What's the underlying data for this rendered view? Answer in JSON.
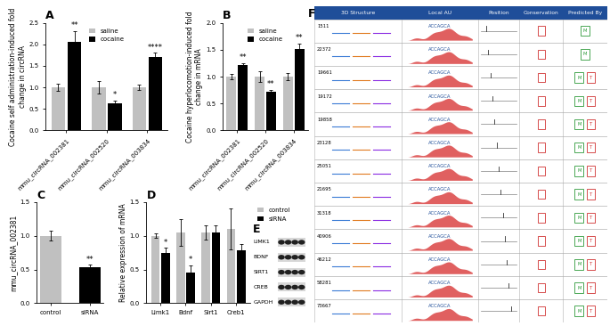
{
  "chart_data": [
    {
      "type": "bar",
      "title": "A",
      "y_label": "Cocaine self administration-induced fold change in circRNA",
      "categories": [
        "mmu_circRNA_002381",
        "mmu_circRNA_002520",
        "mmu_circRNA_003834"
      ],
      "series": [
        {
          "name": "saline",
          "color": "#c0c0c0",
          "values": [
            1.0,
            1.0,
            1.0
          ],
          "errors": [
            0.08,
            0.15,
            0.07
          ],
          "annotations": [
            null,
            null,
            null
          ]
        },
        {
          "name": "cocaine",
          "color": "#000000",
          "values": [
            2.05,
            0.63,
            1.7
          ],
          "errors": [
            0.25,
            0.06,
            0.1
          ],
          "annotations": [
            "**",
            "*",
            "****"
          ]
        }
      ],
      "ylim": [
        0,
        2.5
      ],
      "yticks": [
        {
          "value": 0,
          "label": "0.0"
        },
        0.5,
        {
          "value": 1,
          "label": "1.0"
        },
        1.5,
        {
          "value": 2,
          "label": "2.0"
        },
        2.5
      ],
      "legend": "upper center"
    },
    {
      "type": "bar",
      "title": "B",
      "y_label": "Cocaine hyperlocomotion-induced fold change in mRNA",
      "categories": [
        "mmu_circRNA_002381",
        "mmu_circRNA_002520",
        "mmu_circRNA_003834"
      ],
      "series": [
        {
          "name": "saline",
          "color": "#c0c0c0",
          "values": [
            1.0,
            1.0,
            1.0
          ],
          "errors": [
            0.05,
            0.1,
            0.06
          ],
          "annotations": [
            null,
            null,
            null
          ]
        },
        {
          "name": "cocaine",
          "color": "#000000",
          "values": [
            1.22,
            0.72,
            1.52
          ],
          "errors": [
            0.03,
            0.03,
            0.1
          ],
          "annotations": [
            "**",
            "**",
            "**"
          ]
        }
      ],
      "ylim": [
        0,
        2
      ],
      "yticks": [
        {
          "value": 0,
          "label": "0.0"
        },
        0.5,
        {
          "value": 1,
          "label": "1.0"
        },
        1.5,
        {
          "value": 2,
          "label": "2.0"
        }
      ],
      "legend": "upper center"
    },
    {
      "type": "bar",
      "title": "C",
      "y_label": "mmu_circRNA_002381",
      "categories": [
        "control",
        "siRNA"
      ],
      "values": [
        1.0,
        0.53
      ],
      "errors": [
        0.07,
        0.04
      ],
      "annotations": [
        null,
        "**"
      ],
      "colors": [
        "#c0c0c0",
        "#000000"
      ],
      "ylim": [
        0,
        1.5
      ],
      "yticks": [
        {
          "value": 0,
          "label": "0.0"
        },
        0.5,
        {
          "value": 1,
          "label": "1.0"
        },
        1.5
      ]
    },
    {
      "type": "bar",
      "title": "D",
      "y_label": "Relative expression of mRNA",
      "categories": [
        "Limk1",
        "Bdnf",
        "Sirt1",
        "Creb1"
      ],
      "series": [
        {
          "name": "control",
          "color": "#c0c0c0",
          "values": [
            1.0,
            1.05,
            1.05,
            1.1
          ],
          "errors": [
            0.03,
            0.2,
            0.1,
            0.3
          ],
          "annotations": [
            null,
            null,
            null,
            null
          ]
        },
        {
          "name": "siRNA",
          "color": "#000000",
          "values": [
            0.74,
            0.46,
            1.05,
            0.78
          ],
          "errors": [
            0.08,
            0.1,
            0.1,
            0.1
          ],
          "annotations": [
            "*",
            "*",
            null,
            null
          ]
        }
      ],
      "ylim": [
        0,
        1.5
      ],
      "yticks": [
        {
          "value": 0,
          "label": "0.0"
        },
        0.5,
        {
          "value": 1,
          "label": "1.0"
        },
        1.5
      ],
      "legend": "outside right"
    }
  ],
  "blot": {
    "title": "E",
    "labels": [
      "LIMK1",
      "BDNF",
      "SIRT1",
      "CREB",
      "GAPDH"
    ]
  },
  "table": {
    "title": "F",
    "columns": [
      "3D Structure",
      "Local AU",
      "Position",
      "Conservation",
      "Predicted By"
    ],
    "rows": [
      {
        "position": 1511,
        "seed": "ACCAGCA",
        "predicted_by": [
          "M"
        ]
      },
      {
        "position": 22372,
        "seed": "ACCAGCA",
        "predicted_by": [
          "M"
        ]
      },
      {
        "position": 19661,
        "seed": "ACCAGCA",
        "predicted_by": [
          "M",
          "T"
        ]
      },
      {
        "position": 19172,
        "seed": "ACCAGCA",
        "predicted_by": [
          "M",
          "T"
        ]
      },
      {
        "position": 19858,
        "seed": "ACCAGCA",
        "predicted_by": [
          "M",
          "T"
        ]
      },
      {
        "position": 23128,
        "seed": "ACCAGCA",
        "predicted_by": [
          "M",
          "T"
        ]
      },
      {
        "position": 25051,
        "seed": "ACCAGCA",
        "predicted_by": [
          "M",
          "T"
        ]
      },
      {
        "position": 21695,
        "seed": "ACCAGCA",
        "predicted_by": [
          "M",
          "T"
        ]
      },
      {
        "position": 31318,
        "seed": "ACCAGCA",
        "predicted_by": [
          "M",
          "T"
        ]
      },
      {
        "position": 40906,
        "seed": "ACCAGCA",
        "predicted_by": [
          "M",
          "T"
        ]
      },
      {
        "position": 46212,
        "seed": "ACCAGCA",
        "predicted_by": [
          "M",
          "T"
        ]
      },
      {
        "position": 58281,
        "seed": "ACCAGCA",
        "predicted_by": [
          "M",
          "T"
        ]
      },
      {
        "position": 73667,
        "seed": "ACCAGCA",
        "predicted_by": [
          "M",
          "T"
        ]
      }
    ]
  }
}
